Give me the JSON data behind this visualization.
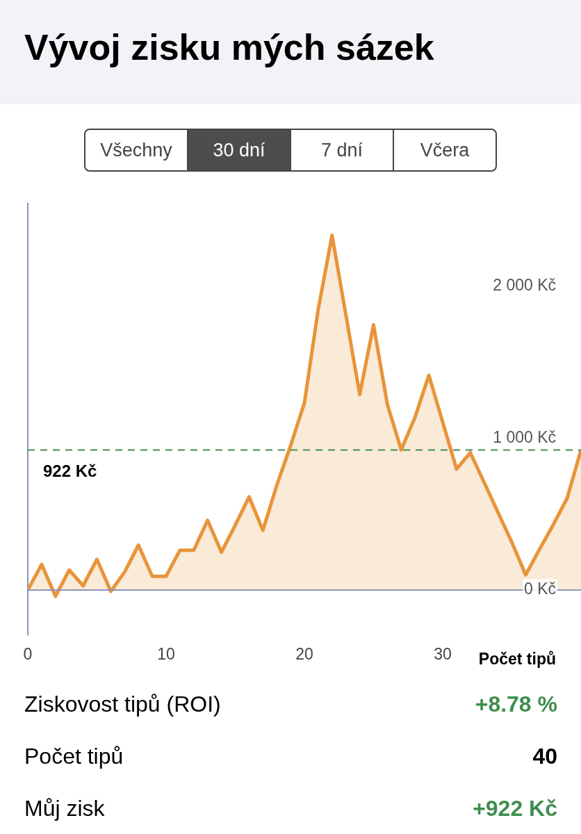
{
  "chart_data": {
    "type": "area",
    "title": "Vývoj zisku mých sázek",
    "xlabel": "Počet tipů",
    "x": [
      0,
      1,
      2,
      3,
      4,
      5,
      6,
      7,
      8,
      9,
      10,
      11,
      12,
      13,
      14,
      15,
      16,
      17,
      18,
      19,
      20,
      21,
      22,
      23,
      24,
      25,
      26,
      27,
      28,
      29,
      30,
      31,
      32,
      33,
      34,
      35,
      36,
      37,
      38,
      39,
      40
    ],
    "series": [
      {
        "color": "#e8943a",
        "values": [
          0,
          168,
          -41,
          131,
          28,
          202,
          -9,
          118,
          296,
          90,
          90,
          262,
          262,
          459,
          249,
          427,
          614,
          393,
          689,
          950,
          1232,
          1850,
          2336,
          1812,
          1288,
          1747,
          1222,
          923,
          1138,
          1415,
          1106,
          797,
          904,
          708,
          511,
          314,
          99,
          268,
          431,
          605,
          922
        ]
      }
    ],
    "xlim": [
      0,
      40
    ],
    "xticks": [
      0,
      10,
      20,
      30
    ],
    "ylim": [
      -300,
      2550
    ],
    "yticks": [
      {
        "value": 0,
        "label": "0 Kč"
      },
      {
        "value": 1000,
        "label": "1 000 Kč"
      },
      {
        "value": 2000,
        "label": "2 000 Kč"
      }
    ],
    "ref_lines": [
      {
        "axis": "y",
        "value": 0,
        "label": null,
        "color": "#8a93c0",
        "line_style": "solid"
      },
      {
        "axis": "y",
        "value": 922,
        "label": "922 Kč",
        "color": "#3e8e4e",
        "line_style": "dashed"
      }
    ],
    "annotations": [
      "Všechny",
      "30 dní",
      "7 dní",
      "Včera",
      "Ziskovost tipů (ROI)",
      "+8.78 %",
      "Počet tipů",
      "40",
      "Můj zisk",
      "+922 Kč"
    ],
    "grid": false,
    "legend": false,
    "marker": "none"
  }
}
